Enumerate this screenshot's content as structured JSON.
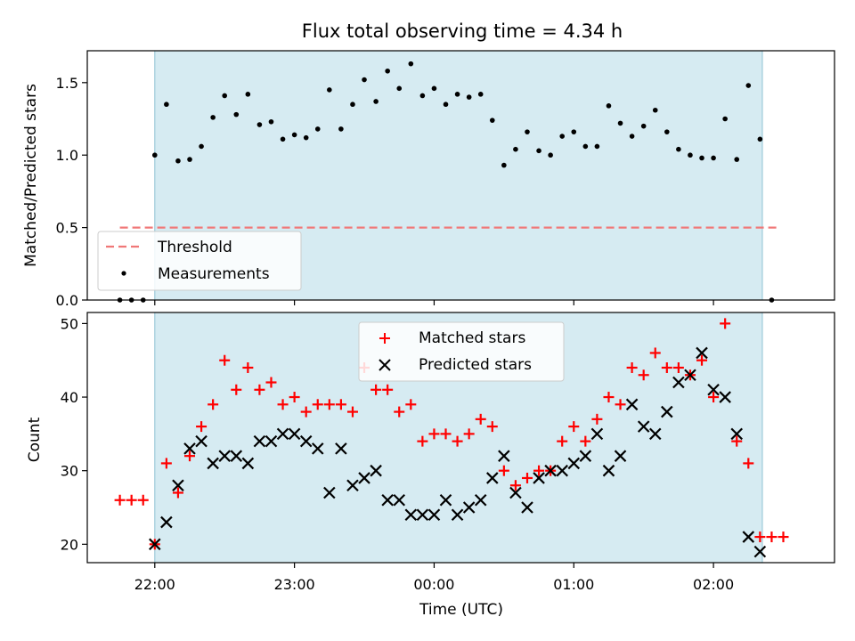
{
  "chart_data": [
    {
      "type": "scatter",
      "title": "Flux total observing time = 4.34 h",
      "ylabel": "Matched/Predicted stars",
      "xlabel": "",
      "xlim": [
        "21:31",
        "02:52"
      ],
      "ylim": [
        0,
        1.72
      ],
      "yticks": [
        0.0,
        0.5,
        1.0,
        1.5
      ],
      "ytick_labels": [
        "0.0",
        "0.5",
        "1.0",
        "1.5"
      ],
      "shaded_span": [
        "22:00",
        "02:21"
      ],
      "threshold": {
        "name": "Threshold",
        "y": 0.5,
        "x": [
          "21:45",
          "02:28"
        ],
        "color": "#f07878"
      },
      "series": [
        {
          "name": "Measurements",
          "color": "#000000",
          "x": [
            "21:45",
            "21:50",
            "21:55",
            "22:00",
            "22:05",
            "22:10",
            "22:15",
            "22:20",
            "22:25",
            "22:30",
            "22:35",
            "22:40",
            "22:45",
            "22:50",
            "22:55",
            "23:00",
            "23:05",
            "23:10",
            "23:15",
            "23:20",
            "23:25",
            "23:30",
            "23:35",
            "23:40",
            "23:45",
            "23:50",
            "23:55",
            "00:00",
            "00:05",
            "00:10",
            "00:15",
            "00:20",
            "00:25",
            "00:30",
            "00:35",
            "00:40",
            "00:45",
            "00:50",
            "00:55",
            "01:00",
            "01:05",
            "01:10",
            "01:15",
            "01:20",
            "01:25",
            "01:30",
            "01:35",
            "01:40",
            "01:45",
            "01:50",
            "01:55",
            "02:00",
            "02:05",
            "02:10",
            "02:15",
            "02:20",
            "02:25"
          ],
          "y": [
            0.0,
            0.0,
            0.0,
            1.0,
            1.35,
            0.96,
            0.97,
            1.06,
            1.26,
            1.41,
            1.28,
            1.42,
            1.21,
            1.23,
            1.11,
            1.14,
            1.12,
            1.18,
            1.45,
            1.18,
            1.35,
            1.52,
            1.37,
            1.58,
            1.46,
            1.63,
            1.41,
            1.46,
            1.35,
            1.42,
            1.4,
            1.42,
            1.24,
            0.93,
            1.04,
            1.16,
            1.03,
            1.0,
            1.13,
            1.16,
            1.06,
            1.06,
            1.34,
            1.22,
            1.13,
            1.2,
            1.31,
            1.16,
            1.04,
            1.0,
            0.98,
            0.98,
            1.25,
            0.97,
            1.48,
            1.11,
            0.0
          ]
        }
      ],
      "legend": {
        "placement": "lower-left",
        "entries": [
          "Threshold",
          "Measurements"
        ]
      }
    },
    {
      "type": "scatter",
      "title": "",
      "ylabel": "Count",
      "xlabel": "Time (UTC)",
      "xlim": [
        "21:31",
        "02:52"
      ],
      "ylim": [
        17.5,
        51.5
      ],
      "yticks": [
        20,
        30,
        40,
        50
      ],
      "ytick_labels": [
        "20",
        "30",
        "40",
        "50"
      ],
      "xticks": [
        "22:00",
        "23:00",
        "00:00",
        "01:00",
        "02:00"
      ],
      "shaded_span": [
        "22:00",
        "02:21"
      ],
      "series": [
        {
          "name": "Matched stars",
          "color": "#ff0000",
          "marker": "plus",
          "x": [
            "21:45",
            "21:50",
            "21:55",
            "22:00",
            "22:05",
            "22:10",
            "22:15",
            "22:20",
            "22:25",
            "22:30",
            "22:35",
            "22:40",
            "22:45",
            "22:50",
            "22:55",
            "23:00",
            "23:05",
            "23:10",
            "23:15",
            "23:20",
            "23:25",
            "23:30",
            "23:35",
            "23:40",
            "23:45",
            "23:50",
            "23:55",
            "00:00",
            "00:05",
            "00:10",
            "00:15",
            "00:20",
            "00:25",
            "00:30",
            "00:35",
            "00:40",
            "00:45",
            "00:50",
            "00:55",
            "01:00",
            "01:05",
            "01:10",
            "01:15",
            "01:20",
            "01:25",
            "01:30",
            "01:35",
            "01:40",
            "01:45",
            "01:50",
            "01:55",
            "02:00",
            "02:05",
            "02:10",
            "02:15",
            "02:20",
            "02:25",
            "02:30"
          ],
          "y": [
            26,
            26,
            26,
            20,
            31,
            27,
            32,
            36,
            39,
            45,
            41,
            44,
            41,
            42,
            39,
            40,
            38,
            39,
            39,
            39,
            38,
            44,
            41,
            41,
            38,
            39,
            34,
            35,
            35,
            34,
            35,
            37,
            36,
            30,
            28,
            29,
            30,
            30,
            34,
            36,
            34,
            37,
            40,
            39,
            44,
            43,
            46,
            44,
            44,
            43,
            45,
            40,
            50,
            34,
            31,
            21,
            21,
            21
          ]
        },
        {
          "name": "Predicted stars",
          "color": "#000000",
          "marker": "x",
          "x": [
            "22:00",
            "22:05",
            "22:10",
            "22:15",
            "22:20",
            "22:25",
            "22:30",
            "22:35",
            "22:40",
            "22:45",
            "22:50",
            "22:55",
            "23:00",
            "23:05",
            "23:10",
            "23:15",
            "23:20",
            "23:25",
            "23:30",
            "23:35",
            "23:40",
            "23:45",
            "23:50",
            "23:55",
            "00:00",
            "00:05",
            "00:10",
            "00:15",
            "00:20",
            "00:25",
            "00:30",
            "00:35",
            "00:40",
            "00:45",
            "00:50",
            "00:55",
            "01:00",
            "01:05",
            "01:10",
            "01:15",
            "01:20",
            "01:25",
            "01:30",
            "01:35",
            "01:40",
            "01:45",
            "01:50",
            "01:55",
            "02:00",
            "02:05",
            "02:10",
            "02:15",
            "02:20"
          ],
          "y": [
            20,
            23,
            28,
            33,
            34,
            31,
            32,
            32,
            31,
            34,
            34,
            35,
            35,
            34,
            33,
            27,
            33,
            28,
            29,
            30,
            26,
            26,
            24,
            24,
            24,
            26,
            24,
            25,
            26,
            29,
            32,
            27,
            25,
            29,
            30,
            30,
            31,
            32,
            35,
            30,
            32,
            39,
            36,
            35,
            38,
            42,
            43,
            46,
            41,
            40,
            35,
            21,
            19
          ]
        }
      ],
      "legend": {
        "placement": "upper-center",
        "entries": [
          "Matched stars",
          "Predicted stars"
        ]
      }
    }
  ]
}
